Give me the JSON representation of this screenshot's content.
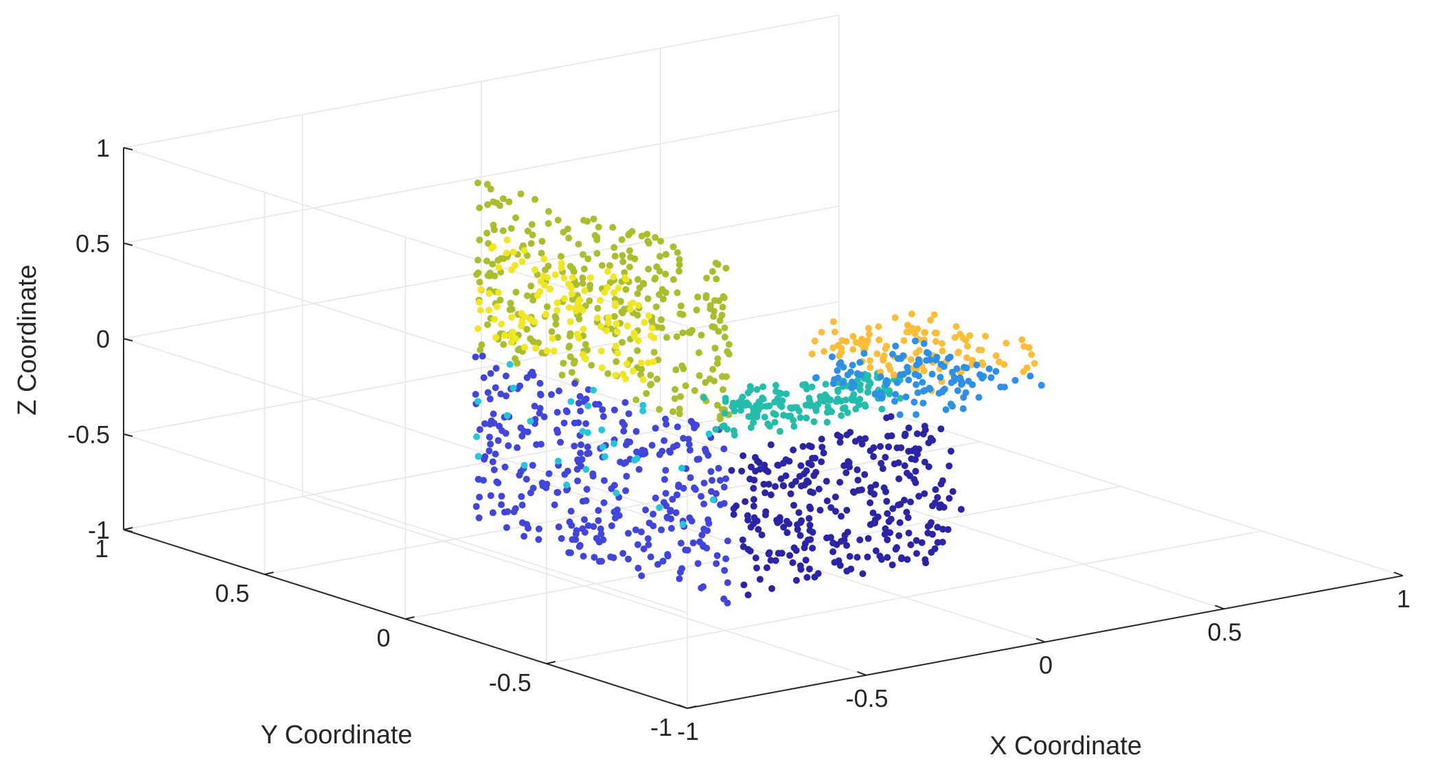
{
  "chart_data": {
    "type": "scatter",
    "projection": "3d",
    "xlabel": "X Coordinate",
    "ylabel": "Y Coordinate",
    "zlabel": "Z Coordinate",
    "xlim": [
      -1,
      1
    ],
    "ylim": [
      -1,
      1
    ],
    "zlim": [
      -1,
      1
    ],
    "xticks": [
      -1,
      -0.5,
      0,
      0.5,
      1
    ],
    "yticks": [
      -1,
      -0.5,
      0,
      0.5,
      1
    ],
    "zticks": [
      -1,
      -0.5,
      0,
      0.5,
      1
    ],
    "xtick_labels": [
      "-1",
      "-0.5",
      "0",
      "0.5",
      "1"
    ],
    "ytick_labels": [
      "-1",
      "-0.5",
      "0",
      "0.5",
      "1"
    ],
    "ztick_labels": [
      "-1",
      "-0.5",
      "0",
      "0.5",
      "1"
    ],
    "grid": true,
    "legend": "none",
    "clusters": [
      {
        "color": "#a9bd2e",
        "count": 330,
        "x": [
          -0.45,
          -0.45
        ],
        "y": [
          -0.45,
          0.45
        ],
        "z": [
          0.0,
          0.9
        ]
      },
      {
        "color": "#f0e626",
        "count": 120,
        "x": [
          -0.45,
          -0.45
        ],
        "y": [
          -0.2,
          0.45
        ],
        "z": [
          0.1,
          0.65
        ]
      },
      {
        "color": "#4146d9",
        "count": 330,
        "x": [
          -0.45,
          -0.45
        ],
        "y": [
          -0.45,
          0.45
        ],
        "z": [
          -0.9,
          0.0
        ]
      },
      {
        "color": "#25bcab",
        "count": 170,
        "x": [
          -0.45,
          0.05
        ],
        "y": [
          -0.45,
          -0.35
        ],
        "z": [
          -0.05,
          0.15
        ]
      },
      {
        "color": "#fbbd3a",
        "count": 110,
        "x": [
          0.1,
          0.45
        ],
        "y": [
          -0.45,
          0.0
        ],
        "z": [
          0.0,
          0.15
        ]
      },
      {
        "color": "#2e8fe4",
        "count": 110,
        "x": [
          0.1,
          0.45
        ],
        "y": [
          -0.45,
          0.0
        ],
        "z": [
          -0.15,
          0.0
        ]
      },
      {
        "color": "#2b25a3",
        "count": 300,
        "x": [
          -0.4,
          0.2
        ],
        "y": [
          -0.45,
          -0.35
        ],
        "z": [
          -0.9,
          -0.15
        ]
      },
      {
        "color": "#28c5d9",
        "count": 30,
        "x": [
          -0.45,
          -0.45
        ],
        "y": [
          -0.45,
          0.45
        ],
        "z": [
          -0.6,
          0.0
        ]
      }
    ]
  }
}
